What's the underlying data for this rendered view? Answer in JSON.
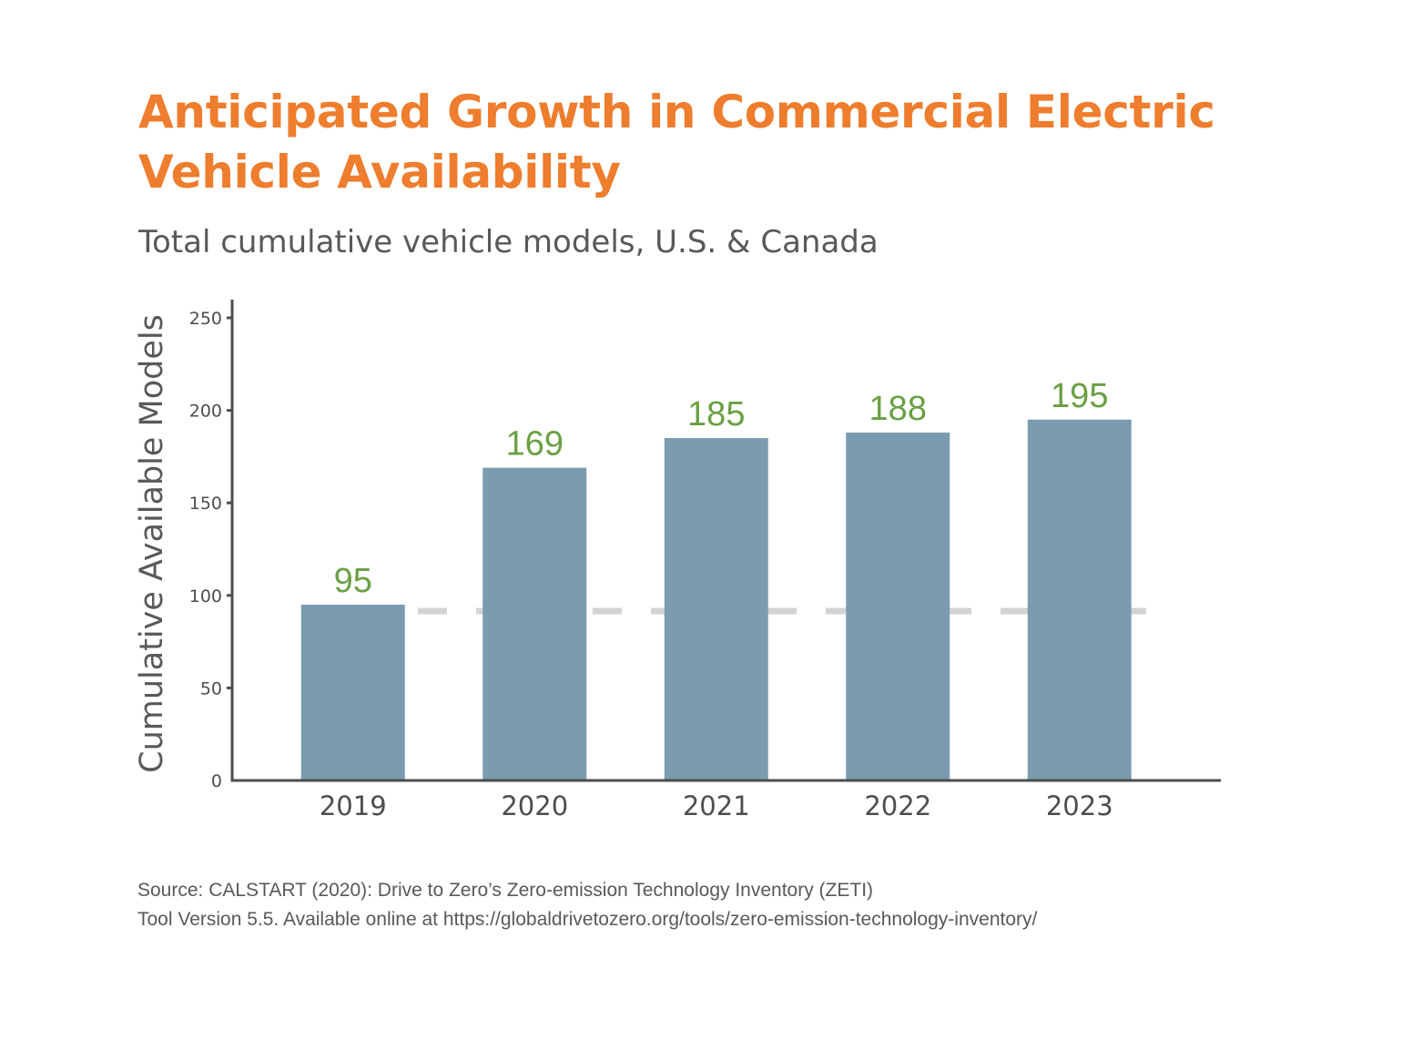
{
  "title": "Anticipated Growth in Commercial Electric Vehicle Availability",
  "subtitle": "Total cumulative vehicle models, U.S. & Canada",
  "source_lines": [
    "Source: CALSTART (2020): Drive to Zero’s Zero-emission Technology Inventory (ZETI)",
    "Tool Version 5.5. Available online at https://globaldrivetozero.org/tools/zero-emission-technology-inventory/"
  ],
  "colors": {
    "title": "#ee7d2d",
    "bar": "#7b9cb0",
    "data_label": "#6aa043",
    "axis": "#4d4d4d",
    "reference_line": "#d3d3d3"
  },
  "chart_data": {
    "type": "bar",
    "categories": [
      "2019",
      "2020",
      "2021",
      "2022",
      "2023"
    ],
    "values": [
      95,
      169,
      185,
      188,
      195
    ],
    "ylabel": "Cumulative Available Models",
    "xlabel": "",
    "ylim": [
      0,
      250
    ],
    "yticks": [
      0,
      50,
      100,
      150,
      200,
      250
    ],
    "reference_line": {
      "value": 95,
      "style": "dashed"
    },
    "grid": false,
    "legend": "none"
  }
}
